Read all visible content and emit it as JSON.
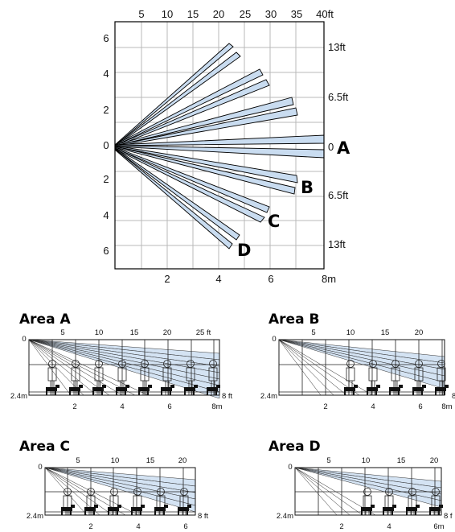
{
  "main_diagram": {
    "top_ticks": [
      "5",
      "10",
      "15",
      "20",
      "25",
      "30",
      "35",
      "40ft"
    ],
    "bottom_ticks": [
      "2",
      "4",
      "6",
      "8m"
    ],
    "left_ticks": [
      "6",
      "4",
      "2",
      "0",
      "2",
      "4",
      "6"
    ],
    "right_ticks": [
      "13ft",
      "6.5ft",
      "0",
      "6.5ft",
      "13ft"
    ],
    "zone_labels": [
      "A",
      "B",
      "C",
      "D"
    ]
  },
  "areas": [
    {
      "title": "Area A",
      "top_ticks": [
        "0",
        "5",
        "10",
        "15",
        "20",
        "25 ft"
      ],
      "bottom_ticks": [
        "2",
        "4",
        "6",
        "8m"
      ],
      "height_label": "2.4m",
      "floor_label": "8 ft"
    },
    {
      "title": "Area B",
      "top_ticks": [
        "0",
        "5",
        "10",
        "15",
        "20"
      ],
      "bottom_ticks": [
        "2",
        "4",
        "6",
        "8m"
      ],
      "height_label": "2.4m",
      "floor_label": "8"
    },
    {
      "title": "Area C",
      "top_ticks": [
        "0",
        "5",
        "10",
        "15",
        "20"
      ],
      "bottom_ticks": [
        "2",
        "4",
        "6"
      ],
      "height_label": "2.4m",
      "floor_label": "8 ft"
    },
    {
      "title": "Area D",
      "top_ticks": [
        "0",
        "5",
        "10",
        "15",
        "20"
      ],
      "bottom_ticks": [
        "2",
        "4",
        "6m"
      ],
      "height_label": "2.4m",
      "floor_label": "8 f"
    }
  ]
}
